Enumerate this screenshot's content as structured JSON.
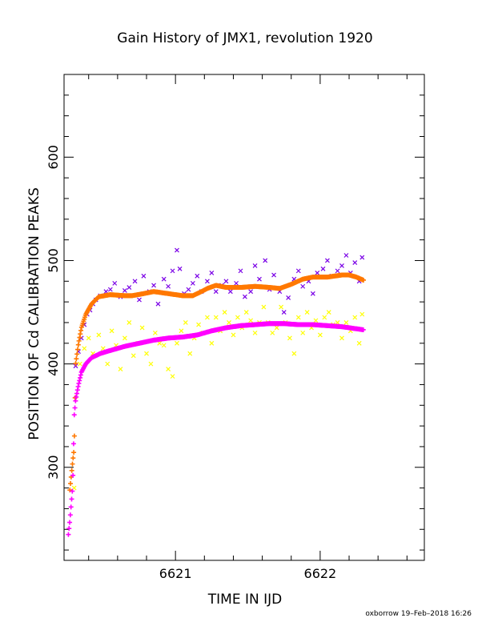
{
  "chart_data": {
    "type": "scatter",
    "title": "Gain History of JMX1, revolution 1920",
    "xlabel": "TIME IN IJD",
    "ylabel": "POSITION OF Cd CALIBRATION PEAKS",
    "xlim": [
      6620.23,
      6622.72
    ],
    "ylim": [
      210,
      680
    ],
    "x_ticks": [
      6621,
      6622
    ],
    "y_ticks": [
      300,
      400,
      500,
      600
    ],
    "grid": false,
    "legend": "none",
    "colors": {
      "purple": "#7a00e6",
      "orange": "#ff7800",
      "yellow": "#ffff00",
      "magenta": "#ff00ff",
      "axis": "#000000"
    },
    "series": [
      {
        "color": "purple",
        "marker": "x",
        "points": [
          [
            6620.31,
            398
          ],
          [
            6620.33,
            412
          ],
          [
            6620.35,
            425
          ],
          [
            6620.37,
            438
          ],
          [
            6620.39,
            448
          ],
          [
            6620.41,
            452
          ],
          [
            6620.43,
            458
          ],
          [
            6620.45,
            462
          ],
          [
            6620.48,
            466
          ],
          [
            6620.52,
            470
          ],
          [
            6620.55,
            472
          ],
          [
            6620.58,
            478
          ],
          [
            6620.62,
            465
          ],
          [
            6620.65,
            471
          ],
          [
            6620.68,
            474
          ],
          [
            6620.72,
            480
          ],
          [
            6620.75,
            462
          ],
          [
            6620.78,
            485
          ],
          [
            6620.82,
            470
          ],
          [
            6620.85,
            476
          ],
          [
            6620.88,
            458
          ],
          [
            6620.92,
            482
          ],
          [
            6620.95,
            475
          ],
          [
            6620.98,
            490
          ],
          [
            6621.01,
            510
          ],
          [
            6621.03,
            492
          ],
          [
            6621.06,
            468
          ],
          [
            6621.09,
            472
          ],
          [
            6621.12,
            478
          ],
          [
            6621.15,
            485
          ],
          [
            6621.18,
            470
          ],
          [
            6621.22,
            480
          ],
          [
            6621.25,
            488
          ],
          [
            6621.28,
            470
          ],
          [
            6621.32,
            476
          ],
          [
            6621.35,
            480
          ],
          [
            6621.38,
            470
          ],
          [
            6621.42,
            478
          ],
          [
            6621.45,
            490
          ],
          [
            6621.48,
            465
          ],
          [
            6621.52,
            470
          ],
          [
            6621.55,
            495
          ],
          [
            6621.58,
            482
          ],
          [
            6621.62,
            500
          ],
          [
            6621.65,
            472
          ],
          [
            6621.68,
            486
          ],
          [
            6621.72,
            470
          ],
          [
            6621.75,
            450
          ],
          [
            6621.78,
            464
          ],
          [
            6621.82,
            482
          ],
          [
            6621.85,
            490
          ],
          [
            6621.88,
            475
          ],
          [
            6621.92,
            480
          ],
          [
            6621.95,
            468
          ],
          [
            6621.98,
            488
          ],
          [
            6622.02,
            492
          ],
          [
            6622.05,
            500
          ],
          [
            6622.08,
            485
          ],
          [
            6622.12,
            490
          ],
          [
            6622.15,
            495
          ],
          [
            6622.18,
            505
          ],
          [
            6622.21,
            488
          ],
          [
            6622.24,
            498
          ],
          [
            6622.27,
            480
          ],
          [
            6622.29,
            503
          ]
        ]
      },
      {
        "color": "yellow",
        "marker": "x",
        "points": [
          [
            6620.3,
            280
          ],
          [
            6620.34,
            400
          ],
          [
            6620.37,
            415
          ],
          [
            6620.4,
            425
          ],
          [
            6620.43,
            410
          ],
          [
            6620.47,
            428
          ],
          [
            6620.5,
            415
          ],
          [
            6620.53,
            400
          ],
          [
            6620.56,
            432
          ],
          [
            6620.59,
            418
          ],
          [
            6620.62,
            395
          ],
          [
            6620.65,
            425
          ],
          [
            6620.68,
            440
          ],
          [
            6620.71,
            408
          ],
          [
            6620.74,
            420
          ],
          [
            6620.77,
            435
          ],
          [
            6620.8,
            410
          ],
          [
            6620.83,
            400
          ],
          [
            6620.86,
            430
          ],
          [
            6620.89,
            420
          ],
          [
            6620.92,
            418
          ],
          [
            6620.95,
            395
          ],
          [
            6620.98,
            388
          ],
          [
            6621.01,
            420
          ],
          [
            6621.04,
            432
          ],
          [
            6621.07,
            440
          ],
          [
            6621.1,
            410
          ],
          [
            6621.13,
            425
          ],
          [
            6621.16,
            438
          ],
          [
            6621.19,
            430
          ],
          [
            6621.22,
            445
          ],
          [
            6621.25,
            420
          ],
          [
            6621.28,
            445
          ],
          [
            6621.31,
            432
          ],
          [
            6621.34,
            450
          ],
          [
            6621.37,
            440
          ],
          [
            6621.4,
            428
          ],
          [
            6621.43,
            445
          ],
          [
            6621.46,
            435
          ],
          [
            6621.49,
            450
          ],
          [
            6621.52,
            442
          ],
          [
            6621.55,
            430
          ],
          [
            6621.58,
            440
          ],
          [
            6621.61,
            455
          ],
          [
            6621.64,
            440
          ],
          [
            6621.67,
            430
          ],
          [
            6621.7,
            435
          ],
          [
            6621.73,
            455
          ],
          [
            6621.76,
            440
          ],
          [
            6621.79,
            425
          ],
          [
            6621.82,
            410
          ],
          [
            6621.85,
            445
          ],
          [
            6621.88,
            430
          ],
          [
            6621.91,
            450
          ],
          [
            6621.94,
            435
          ],
          [
            6621.97,
            442
          ],
          [
            6622.0,
            428
          ],
          [
            6622.03,
            445
          ],
          [
            6622.06,
            450
          ],
          [
            6622.09,
            438
          ],
          [
            6622.12,
            440
          ],
          [
            6622.15,
            425
          ],
          [
            6622.18,
            440
          ],
          [
            6622.21,
            432
          ],
          [
            6622.24,
            445
          ],
          [
            6622.27,
            420
          ],
          [
            6622.29,
            448
          ]
        ]
      },
      {
        "color": "orange",
        "marker": "+",
        "curve": [
          [
            6620.27,
            278
          ],
          [
            6620.28,
            292
          ],
          [
            6620.29,
            306
          ],
          [
            6620.3,
            318
          ],
          [
            6620.31,
            400
          ],
          [
            6620.33,
            420
          ],
          [
            6620.35,
            435
          ],
          [
            6620.38,
            448
          ],
          [
            6620.42,
            458
          ],
          [
            6620.47,
            465
          ],
          [
            6620.55,
            467
          ],
          [
            6620.65,
            466
          ],
          [
            6620.7,
            466
          ],
          [
            6620.78,
            468
          ],
          [
            6620.85,
            470
          ],
          [
            6620.95,
            468
          ],
          [
            6621.05,
            466
          ],
          [
            6621.12,
            466
          ],
          [
            6621.18,
            470
          ],
          [
            6621.22,
            473
          ],
          [
            6621.28,
            476
          ],
          [
            6621.35,
            474
          ],
          [
            6621.45,
            474
          ],
          [
            6621.55,
            475
          ],
          [
            6621.65,
            474
          ],
          [
            6621.72,
            473
          ],
          [
            6621.8,
            477
          ],
          [
            6621.88,
            482
          ],
          [
            6621.95,
            484
          ],
          [
            6622.05,
            484
          ],
          [
            6622.15,
            486
          ],
          [
            6622.2,
            486
          ],
          [
            6622.25,
            484
          ],
          [
            6622.3,
            481
          ]
        ]
      },
      {
        "color": "magenta",
        "marker": "+",
        "curve": [
          [
            6620.26,
            235
          ],
          [
            6620.27,
            248
          ],
          [
            6620.28,
            265
          ],
          [
            6620.29,
            282
          ],
          [
            6620.3,
            350
          ],
          [
            6620.31,
            365
          ],
          [
            6620.33,
            380
          ],
          [
            6620.35,
            392
          ],
          [
            6620.38,
            400
          ],
          [
            6620.42,
            406
          ],
          [
            6620.48,
            410
          ],
          [
            6620.55,
            413
          ],
          [
            6620.65,
            417
          ],
          [
            6620.75,
            420
          ],
          [
            6620.85,
            423
          ],
          [
            6620.95,
            425
          ],
          [
            6621.05,
            426
          ],
          [
            6621.15,
            428
          ],
          [
            6621.25,
            432
          ],
          [
            6621.35,
            435
          ],
          [
            6621.45,
            437
          ],
          [
            6621.55,
            438
          ],
          [
            6621.65,
            439
          ],
          [
            6621.75,
            439
          ],
          [
            6621.85,
            438
          ],
          [
            6621.95,
            438
          ],
          [
            6622.05,
            437
          ],
          [
            6622.15,
            436
          ],
          [
            6622.25,
            434
          ],
          [
            6622.3,
            433
          ]
        ]
      }
    ]
  },
  "footer": {
    "credit": "oxborrow 19–Feb–2018 16:26"
  }
}
